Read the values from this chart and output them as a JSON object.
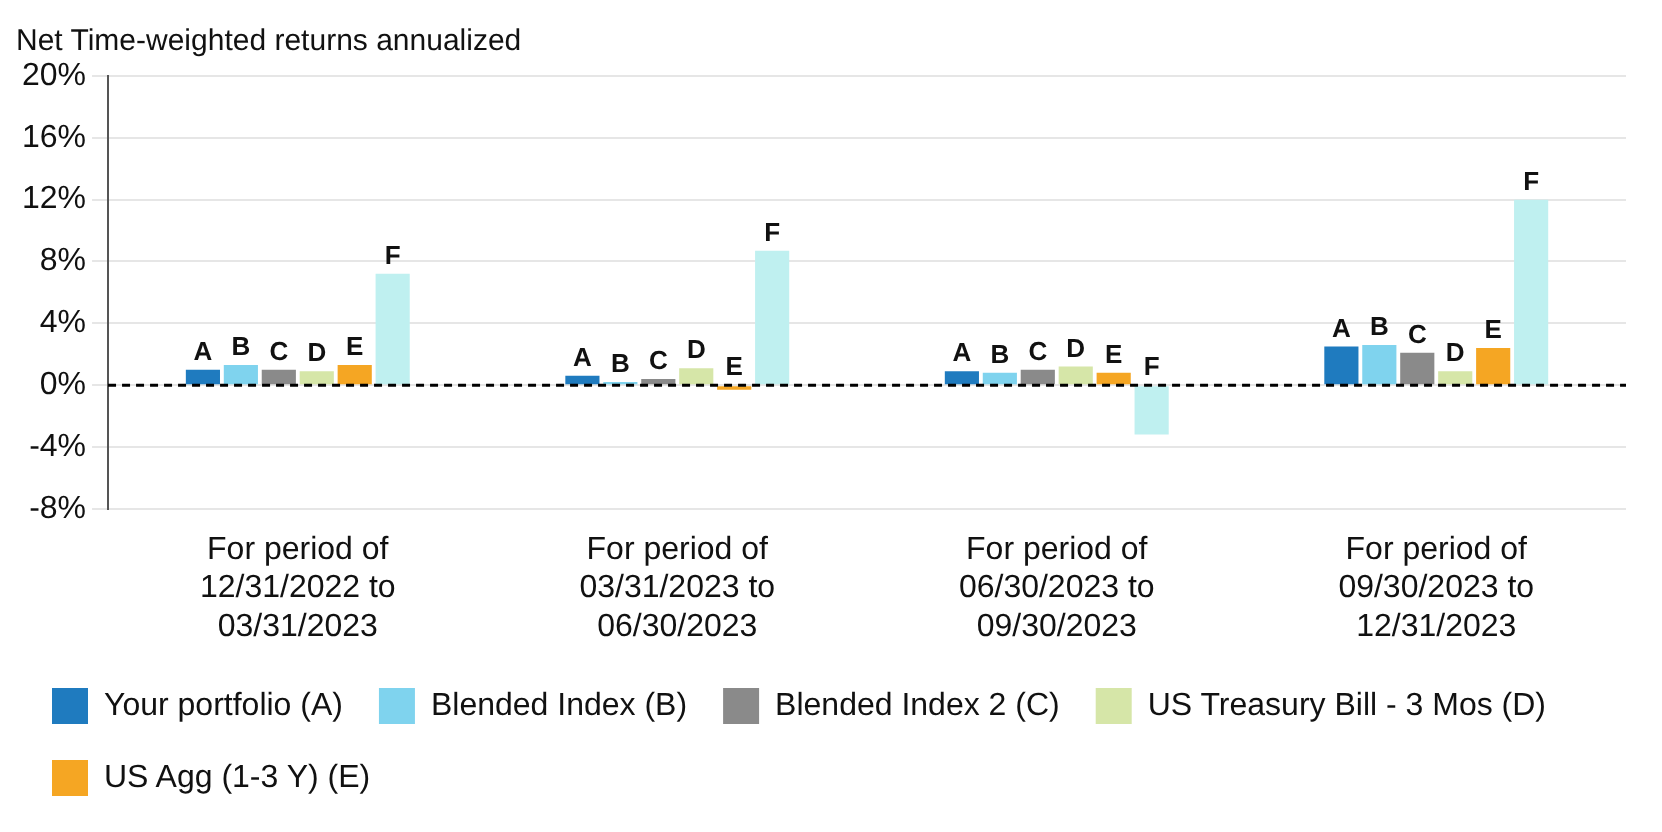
{
  "chart_data": {
    "type": "bar",
    "title": "Net Time-weighted returns annualized",
    "categories": [
      "For period of\n12/31/2022 to\n03/31/2023",
      "For period of\n03/31/2023 to\n06/30/2023",
      "For period of\n06/30/2023 to\n09/30/2023",
      "For period of\n09/30/2023 to\n12/31/2023"
    ],
    "series": [
      {
        "name": "Your portfolio (A)",
        "color": "#1f7bbf",
        "values": [
          1.0,
          0.6,
          0.9,
          2.5
        ],
        "value_labels": [
          "A",
          "A",
          "A",
          "A"
        ]
      },
      {
        "name": "Blended Index (B)",
        "color": "#7fd3ee",
        "values": [
          1.3,
          0.2,
          0.8,
          2.6
        ],
        "value_labels": [
          "B",
          "B",
          "B",
          "B"
        ]
      },
      {
        "name": "Blended Index 2 (C)",
        "color": "#8a8a8a",
        "values": [
          1.0,
          0.4,
          1.0,
          2.1
        ],
        "value_labels": [
          "C",
          "C",
          "C",
          "C"
        ]
      },
      {
        "name": "US Treasury Bill - 3 Mos (D)",
        "color": "#d6e6a8",
        "values": [
          0.9,
          1.1,
          1.2,
          0.9
        ],
        "value_labels": [
          "D",
          "D",
          "D",
          "D"
        ]
      },
      {
        "name": "US Agg (1-3 Y) (E)",
        "color": "#f5a623",
        "values": [
          1.3,
          -0.3,
          0.8,
          2.4
        ],
        "value_labels": [
          "E",
          "E",
          "E",
          "E"
        ]
      },
      {
        "color": "#bff0f0",
        "values": [
          7.2,
          8.7,
          -3.2,
          12.0
        ],
        "value_labels": [
          "F",
          "F",
          "F",
          "F"
        ]
      }
    ],
    "ylim": [
      -8,
      20
    ],
    "yticks": [
      {
        "value": -8,
        "label": "-8%"
      },
      {
        "value": -4,
        "label": "-4%"
      },
      {
        "value": 0,
        "label": "0%"
      },
      {
        "value": 4,
        "label": "4%"
      },
      {
        "value": 8,
        "label": "8%"
      },
      {
        "value": 12,
        "label": "12%"
      },
      {
        "value": 16,
        "label": "16%"
      },
      {
        "value": 20,
        "label": "20%"
      }
    ],
    "ref_lines": [
      {
        "axis": "y",
        "value": 0,
        "color": "#000000",
        "line_style": "dashed"
      }
    ],
    "grid": "y",
    "legend": "bottom"
  }
}
